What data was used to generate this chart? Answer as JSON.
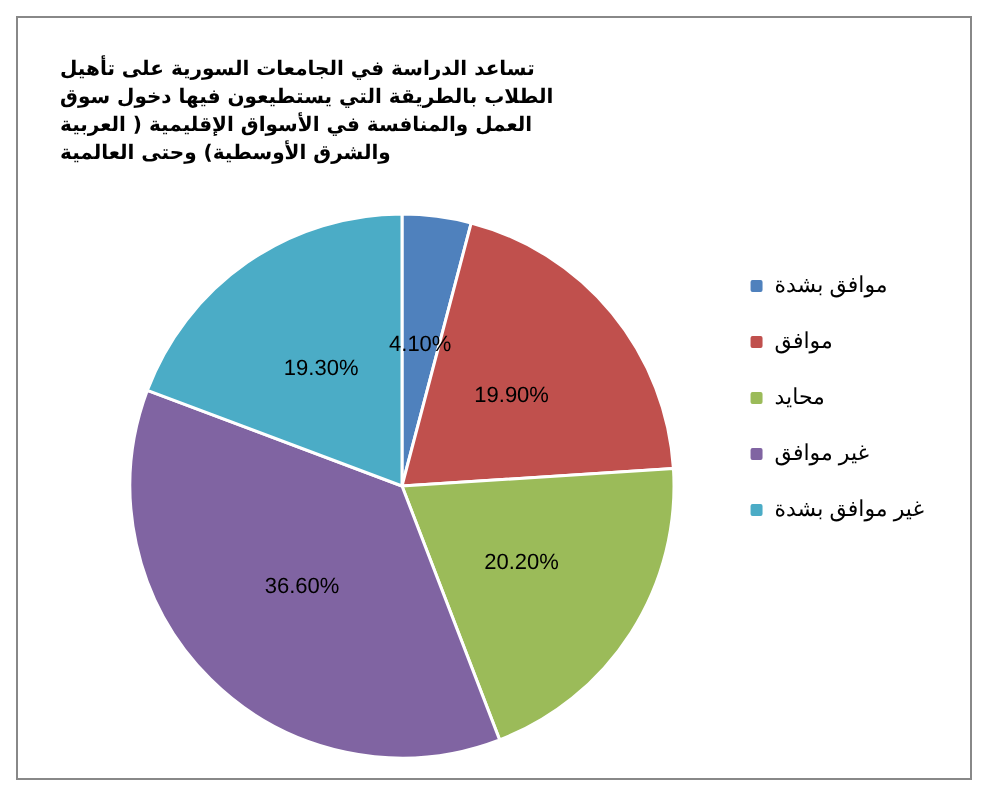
{
  "chart_data": {
    "type": "pie",
    "title": "تساعد الدراسة في الجامعات السورية على تأهيل الطلاب بالطريقة التي يستطيعون فيها دخول سوق العمل والمنافسة في الأسواق الإقليمية ( العربية والشرق الأوسطية) وحتى العالمية",
    "categories": [
      "موافق بشدة",
      "موافق",
      "محايد",
      "غير موافق",
      "غير موافق بشدة"
    ],
    "values": [
      4.1,
      19.9,
      20.2,
      36.6,
      19.3
    ],
    "colors": [
      "#4f81bd",
      "#c0504d",
      "#9bbb59",
      "#8064a2",
      "#4bacc6"
    ],
    "value_labels": [
      "4.10%",
      "19.90%",
      "20.20%",
      "36.60%",
      "19.30%"
    ],
    "legend": "right"
  }
}
